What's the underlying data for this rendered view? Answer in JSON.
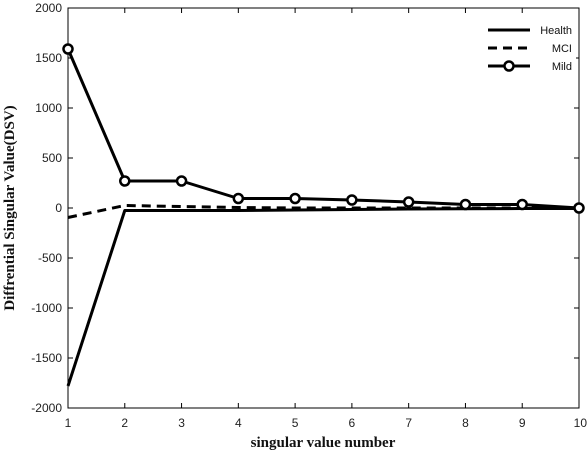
{
  "chart_data": {
    "type": "line",
    "title": "",
    "xlabel": "singular value number",
    "ylabel": "Diffrential Singular Value(DSV)",
    "xlim": [
      1,
      10
    ],
    "ylim": [
      -2000,
      2000
    ],
    "x": [
      1,
      2,
      3,
      4,
      5,
      6,
      7,
      8,
      9,
      10
    ],
    "x_ticks": [
      "1",
      "2",
      "3",
      "4",
      "5",
      "6",
      "7",
      "8",
      "9",
      "10"
    ],
    "y_ticks": [
      "2000",
      "1500",
      "1000",
      "500",
      "0",
      "-500",
      "-1000",
      "-1500",
      "-2000"
    ],
    "grid": false,
    "legend_position": "top-right",
    "series": [
      {
        "name": "Health",
        "style": "solid",
        "color": "#000000",
        "values": [
          -1780,
          -25,
          -25,
          -25,
          -20,
          -15,
          -10,
          -8,
          -5,
          -5
        ]
      },
      {
        "name": "MCI",
        "style": "dashed",
        "color": "#000000",
        "values": [
          -95,
          25,
          15,
          5,
          0,
          0,
          0,
          0,
          0,
          0
        ]
      },
      {
        "name": "Mild",
        "style": "solid-circle-markers",
        "color": "#000000",
        "values": [
          1590,
          270,
          270,
          95,
          95,
          80,
          60,
          35,
          35,
          0
        ]
      }
    ]
  }
}
